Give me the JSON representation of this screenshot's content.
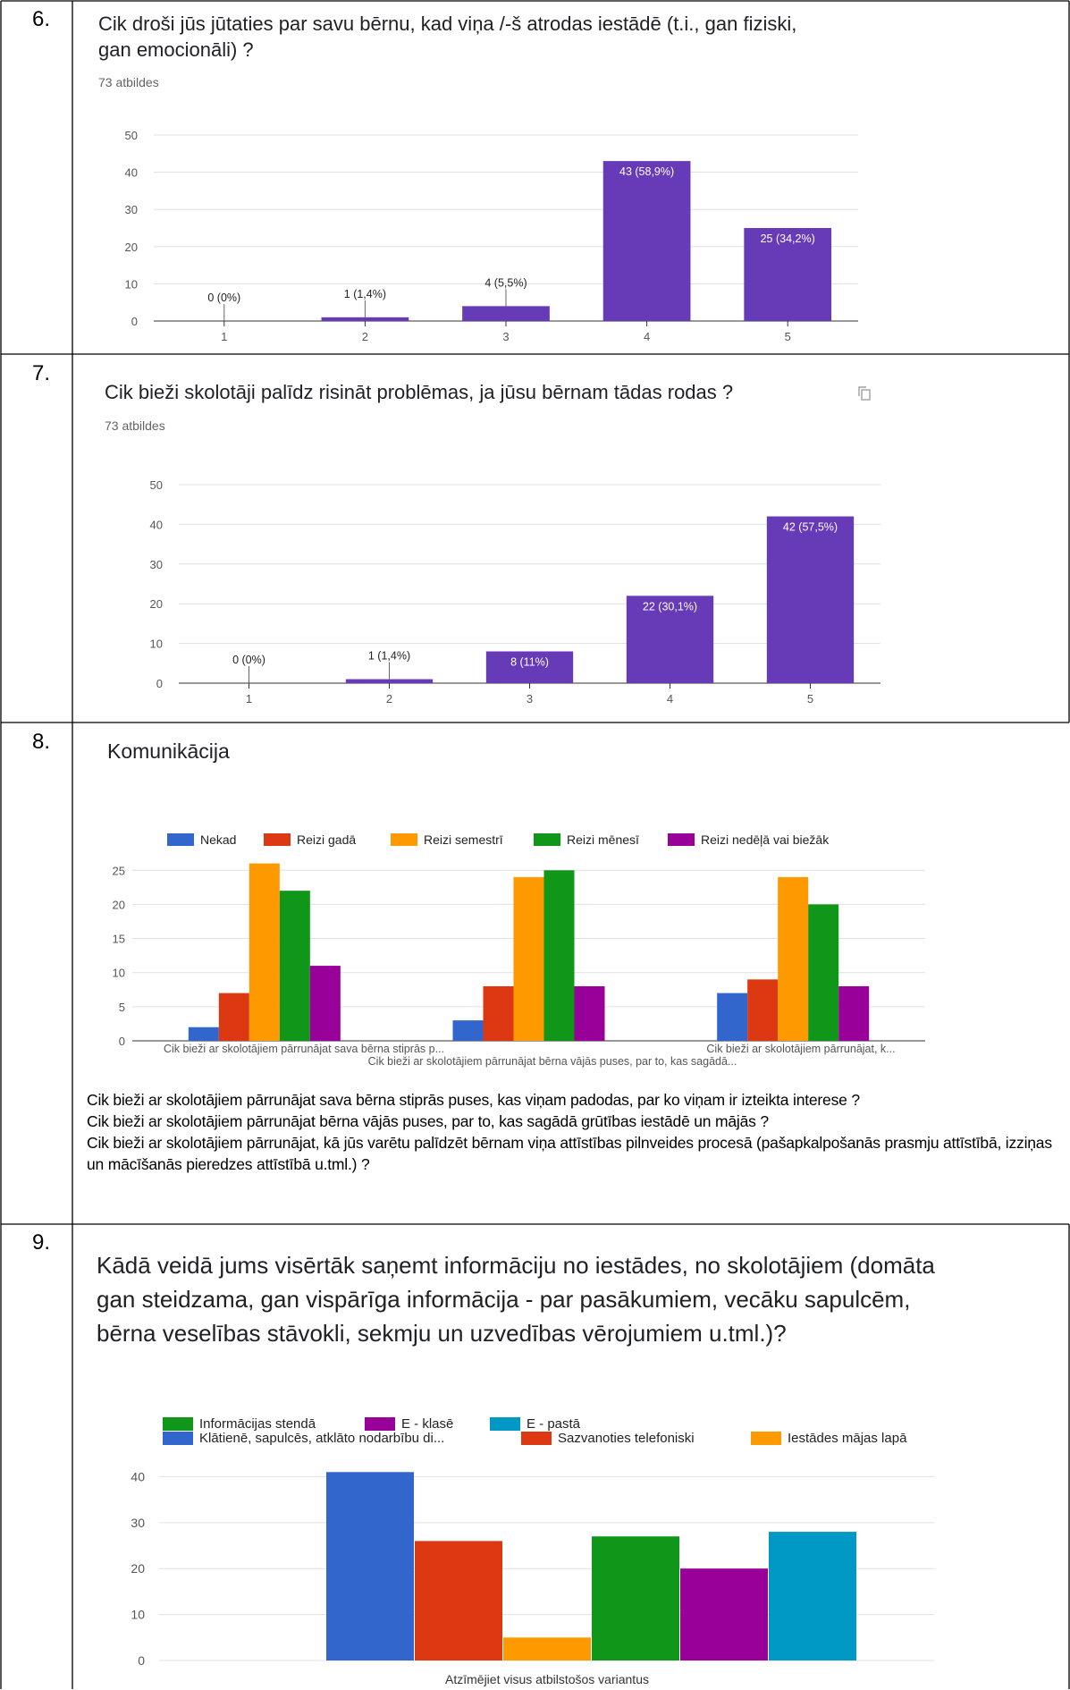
{
  "rows": [
    {
      "number": "6.",
      "title": "Cik droši jūs jūtaties par savu bērnu, kad viņa /-š atrodas iestādē (t.i., gan fiziski, gan emocionāli) ?",
      "count": "73 atbildes"
    },
    {
      "number": "7.",
      "title": "Cik bieži skolotāji palīdz risināt problēmas, ja jūsu bērnam tādas rodas ?",
      "count": "73 atbildes",
      "icon": "copy-icon"
    },
    {
      "number": "8.",
      "title": "Komunikācija"
    },
    {
      "number": "9.",
      "title": "Kādā veidā jums visērtāk saņemt informāciju no iestādes, no skolotājiem (domāta gan steidzama, gan vispārīga informācija - par pasākumiem, vecāku sapulcēm, bērna veselības stāvokli, sekmju un uzvedības vērojumiem u.tml.)?"
    }
  ],
  "notes8": [
    "Cik bieži ar skolotājiem pārrunājat sava bērna stiprās puses, kas viņam padodas, par ko viņam ir izteikta interese ?",
    "Cik bieži ar skolotājiem pārrunājat bērna vājās puses, par to, kas sagādā grūtības iestādē un mājās ?",
    "Cik bieži ar skolotājiem pārrunājat, kā jūs varētu palīdzēt bērnam viņa attīstības pilnveides procesā (pašapkalpošanās prasmju attīstībā, izziņas un mācīšanās pieredzes attīstībā u.tml.) ?"
  ],
  "colors": {
    "primary": "#673ab7",
    "blue": "#3366cc",
    "red": "#dc3912",
    "orange": "#ff9900",
    "green": "#109618",
    "purple": "#990099",
    "teal": "#0099c6",
    "grid": "#e0e0e0"
  },
  "chart_data": [
    {
      "id": "q6",
      "type": "bar",
      "categories": [
        "1",
        "2",
        "3",
        "4",
        "5"
      ],
      "values": [
        0,
        1,
        4,
        43,
        25
      ],
      "data_labels": [
        "0 (0%)",
        "1 (1,4%)",
        "4 (5,5%)",
        "43 (58,9%)",
        "25 (34,2%)"
      ],
      "yticks": [
        0,
        10,
        20,
        30,
        40,
        50
      ],
      "ylim": [
        0,
        50
      ],
      "grid": true
    },
    {
      "id": "q7",
      "type": "bar",
      "categories": [
        "1",
        "2",
        "3",
        "4",
        "5"
      ],
      "values": [
        0,
        1,
        8,
        22,
        42
      ],
      "data_labels": [
        "0 (0%)",
        "1 (1,4%)",
        "8 (11%)",
        "22 (30,1%)",
        "42 (57,5%)"
      ],
      "yticks": [
        0,
        10,
        20,
        30,
        40,
        50
      ],
      "ylim": [
        0,
        50
      ],
      "grid": true
    },
    {
      "id": "q8",
      "type": "bar",
      "categories": [
        "Cik bieži ar skolotājiem pārrunājat sava bērna stiprās p...",
        "Cik bieži ar skolotājiem pārrunājat bērna vājās puses, par to, kas sagādā...",
        "Cik bieži ar skolotājiem pārrunājat, k..."
      ],
      "series": [
        {
          "name": "Nekad",
          "values": [
            2,
            3,
            7
          ]
        },
        {
          "name": "Reizi gadā",
          "values": [
            7,
            8,
            9
          ]
        },
        {
          "name": "Reizi semestrī",
          "values": [
            26,
            24,
            24
          ]
        },
        {
          "name": "Reizi mēnesī",
          "values": [
            22,
            25,
            20
          ]
        },
        {
          "name": "Reizi nedēļā vai biežāk",
          "values": [
            11,
            8,
            8
          ]
        }
      ],
      "yticks": [
        0,
        5,
        10,
        15,
        20,
        25
      ],
      "ylim": [
        0,
        27
      ],
      "legend": "top",
      "grid": true
    },
    {
      "id": "q9",
      "type": "bar",
      "categories": [
        "Atzīmējiet visus atbilstošos variantus"
      ],
      "xlabel": "Atzīmējiet visus atbilstošos variantus",
      "series": [
        {
          "name": "Klātienē, sapulcēs, atklāto nodarbību di...",
          "values": [
            41
          ]
        },
        {
          "name": "Sazvanoties telefoniski",
          "values": [
            26
          ]
        },
        {
          "name": "Iestādes mājas lapā",
          "values": [
            5
          ]
        },
        {
          "name": "Informācijas stendā",
          "values": [
            27
          ]
        },
        {
          "name": "E - klasē",
          "values": [
            20
          ]
        },
        {
          "name": "E - pastā",
          "values": [
            28
          ]
        }
      ],
      "yticks": [
        0,
        10,
        20,
        30,
        40
      ],
      "ylim": [
        0,
        43
      ],
      "legend": "top",
      "grid": true
    }
  ]
}
